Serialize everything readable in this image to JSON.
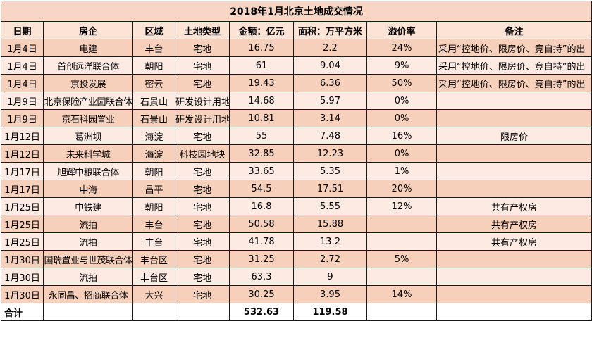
{
  "title": "2018年1月北京土地成交情况",
  "headers": {
    "date": "日期",
    "company": "房企",
    "district": "区域",
    "land_type": "土地类型",
    "amount": "金额：亿元",
    "area": "面积：万平方米",
    "premium": "溢价率",
    "note": "备注"
  },
  "rows": [
    {
      "date": "1月4日",
      "company": "电建",
      "district": "丰台",
      "land_type": "宅地",
      "amount": "16.75",
      "area": "2.2",
      "premium": "24%",
      "note": "采用“控地价、限房价、竞自持”的出"
    },
    {
      "date": "1月4日",
      "company": "首创远洋联合体",
      "district": "朝阳",
      "land_type": "宅地",
      "amount": "61",
      "area": "9.04",
      "premium": "9%",
      "note": "采用“控地价、限房价、竞自持”的出"
    },
    {
      "date": "1月4日",
      "company": "京投发展",
      "district": "密云",
      "land_type": "宅地",
      "amount": "19.43",
      "area": "6.36",
      "premium": "50%",
      "note": "采用“控地价、限房价、竞自持”的出"
    },
    {
      "date": "1月9日",
      "company": "北京保险产业园联合体",
      "district": "石景山",
      "land_type": "研发设计用地",
      "amount": "14.68",
      "area": "5.97",
      "premium": "0%",
      "note": ""
    },
    {
      "date": "1月9日",
      "company": "京石科园置业",
      "district": "石景山",
      "land_type": "研发设计用地",
      "amount": "10.81",
      "area": "3.14",
      "premium": "0%",
      "note": ""
    },
    {
      "date": "1月12日",
      "company": "葛洲坝",
      "district": "海淀",
      "land_type": "宅地",
      "amount": "55",
      "area": "7.48",
      "premium": "16%",
      "note": "限房价"
    },
    {
      "date": "1月12日",
      "company": "未来科学城",
      "district": "海淀",
      "land_type": "科技园地块",
      "amount": "32.85",
      "area": "12.23",
      "premium": "0%",
      "note": ""
    },
    {
      "date": "1月17日",
      "company": "旭辉中粮联合体",
      "district": "朝阳",
      "land_type": "宅地",
      "amount": "33.65",
      "area": "5.35",
      "premium": "1%",
      "note": ""
    },
    {
      "date": "1月17日",
      "company": "中海",
      "district": "昌平",
      "land_type": "宅地",
      "amount": "54.5",
      "area": "17.51",
      "premium": "20%",
      "note": ""
    },
    {
      "date": "1月25日",
      "company": "中铁建",
      "district": "朝阳",
      "land_type": "宅地",
      "amount": "16.8",
      "area": "5.55",
      "premium": "12%",
      "note": "共有产权房"
    },
    {
      "date": "1月25日",
      "company": "流拍",
      "district": "丰台",
      "land_type": "宅地",
      "amount": "50.58",
      "area": "15.88",
      "premium": "",
      "note": "共有产权房"
    },
    {
      "date": "1月25日",
      "company": "流拍",
      "district": "丰台",
      "land_type": "宅地",
      "amount": "41.78",
      "area": "13.2",
      "premium": "",
      "note": "共有产权房"
    },
    {
      "date": "1月30日",
      "company": "国瑞置业与世茂联合体",
      "district": "丰台区",
      "land_type": "宅地",
      "amount": "31.25",
      "area": "2.72",
      "premium": "5%",
      "note": ""
    },
    {
      "date": "1月30日",
      "company": "流拍",
      "district": "丰台区",
      "land_type": "宅地",
      "amount": "63.3",
      "area": "9",
      "premium": "",
      "note": ""
    },
    {
      "date": "1月30日",
      "company": "永同昌、招商联合体",
      "district": "大兴",
      "land_type": "宅地",
      "amount": "30.25",
      "area": "3.95",
      "premium": "14%",
      "note": ""
    }
  ],
  "total": {
    "label": "合计",
    "amount": "532.63",
    "area": "119.58"
  }
}
